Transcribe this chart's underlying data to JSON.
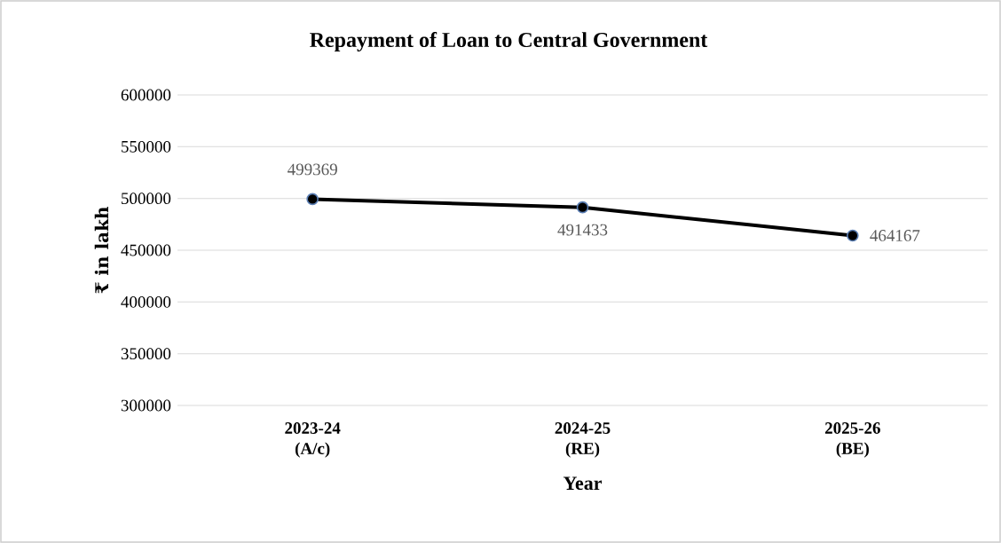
{
  "chart_data": {
    "type": "line",
    "title": "Repayment of Loan to Central Government",
    "xlabel": "Year",
    "ylabel": "₹ in lakh",
    "categories": [
      "2023-24 (A/c)",
      "2024-25 (RE)",
      "2025-26 (BE)"
    ],
    "values": [
      499369,
      491433,
      464167
    ],
    "color": "#000000",
    "ylim": [
      300000,
      600000
    ],
    "yticks": [
      300000,
      350000,
      400000,
      450000,
      500000,
      550000,
      600000
    ],
    "grid": "y",
    "marker": "circle",
    "line_style": "solid",
    "data_labels": true
  }
}
